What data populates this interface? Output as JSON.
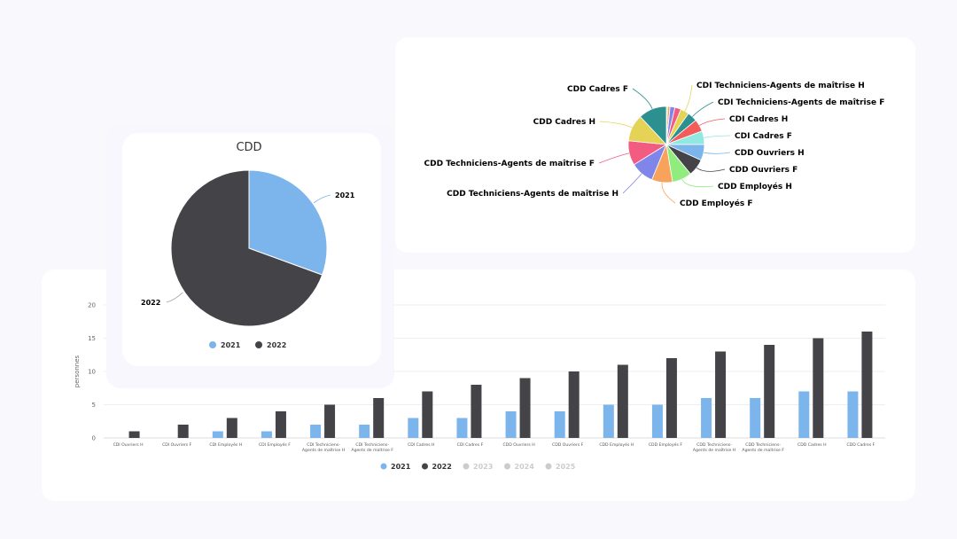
{
  "colors": {
    "page_bg": "#f8f8fd",
    "series_2021": "#7cb5ec",
    "series_2022": "#434348",
    "legend_disabled": "#cccccc",
    "palette": [
      "#90ed7d",
      "#f7a35c",
      "#8085e9",
      "#f15c80",
      "#e4d354",
      "#2b908f",
      "#f45b5b",
      "#91e8e1",
      "#7cb5ec",
      "#434348"
    ]
  },
  "bar_chart": {
    "ylabel": "personnes",
    "y_ticks": [
      "0",
      "5",
      "10",
      "15",
      "20"
    ],
    "legend": [
      {
        "label": "2021",
        "active": true
      },
      {
        "label": "2022",
        "active": true
      },
      {
        "label": "2023",
        "active": false
      },
      {
        "label": "2024",
        "active": false
      },
      {
        "label": "2025",
        "active": false
      }
    ]
  },
  "cdd_pie": {
    "title": "CDD",
    "labels": [
      "2021",
      "2022"
    ],
    "legend": [
      "2021",
      "2022"
    ]
  },
  "category_pie": {
    "labels": [
      "CDI Ouvriers H",
      "CDI Ouvriers F",
      "CDI Employés H",
      "CDI Employés F",
      "CDI Techniciens-Agents de maîtrise H",
      "CDI Techniciens-Agents de maîtrise F",
      "CDI Cadres H",
      "CDI Cadres F",
      "CDD Ouvriers H",
      "CDD Ouvriers F",
      "CDD Employés H",
      "CDD Employés F",
      "CDD Techniciens-Agents de maîtrise H",
      "CDD Techniciens-Agents de maîtrise F",
      "CDD Cadres H",
      "CDD Cadres F"
    ]
  },
  "chart_data": [
    {
      "type": "bar",
      "title": "",
      "xlabel": "",
      "ylabel": "personnes",
      "ylim": [
        0,
        20
      ],
      "grid": true,
      "legend_position": "bottom",
      "categories": [
        "CDI Ouvriers H",
        "CDI Ouvriers F",
        "CDI Employés H",
        "CDI Employés F",
        "CDI Techniciens-Agents de maîtrise H",
        "CDI Techniciens-Agents de maîtrise F",
        "CDI Cadres H",
        "CDI Cadres F",
        "CDD Ouvriers H",
        "CDD Ouvriers F",
        "CDD Employés H",
        "CDD Employés F",
        "CDD Techniciens-Agents de maîtrise H",
        "CDD Techniciens-Agents de maîtrise F",
        "CDD Cadres H",
        "CDD Cadres F"
      ],
      "series": [
        {
          "name": "2021",
          "values": [
            0,
            0,
            1,
            1,
            2,
            2,
            3,
            3,
            4,
            4,
            5,
            5,
            6,
            6,
            7,
            7
          ]
        },
        {
          "name": "2022",
          "values": [
            1,
            2,
            3,
            4,
            5,
            6,
            7,
            8,
            9,
            10,
            11,
            12,
            13,
            14,
            15,
            16
          ]
        },
        {
          "name": "2023",
          "values": [],
          "hidden": true
        },
        {
          "name": "2024",
          "values": [],
          "hidden": true
        },
        {
          "name": "2025",
          "values": [],
          "hidden": true
        }
      ]
    },
    {
      "type": "pie",
      "title": "CDD",
      "categories": [
        "2021",
        "2022"
      ],
      "values": [
        44,
        100
      ],
      "legend_position": "bottom"
    },
    {
      "type": "pie",
      "title": "",
      "categories": [
        "CDI Ouvriers H",
        "CDI Ouvriers F",
        "CDI Employés H",
        "CDI Employés F",
        "CDI Techniciens-Agents de maîtrise H",
        "CDI Techniciens-Agents de maîtrise F",
        "CDI Cadres H",
        "CDI Cadres F",
        "CDD Ouvriers H",
        "CDD Ouvriers F",
        "CDD Employés H",
        "CDD Employés F",
        "CDD Techniciens-Agents de maîtrise H",
        "CDD Techniciens-Agents de maîtrise F",
        "CDD Cadres H",
        "CDD Cadres F"
      ],
      "values": [
        1,
        2,
        4,
        5,
        7,
        8,
        10,
        11,
        13,
        14,
        16,
        17,
        19,
        20,
        22,
        23
      ]
    }
  ]
}
